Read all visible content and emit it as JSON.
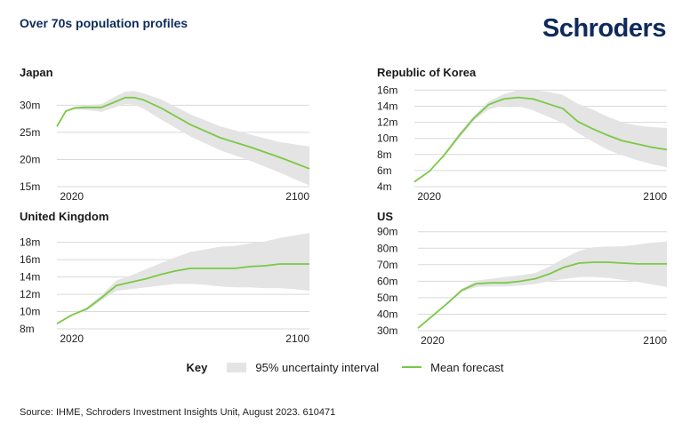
{
  "header": {
    "title": "Over 70s population profiles",
    "logo_text": "Schroders"
  },
  "legend": {
    "key_label": "Key",
    "band_label": "95% uncertainty interval",
    "line_label": "Mean forecast"
  },
  "source": "Source: IHME, Schroders Investment Insights Unit, August 2023. 610471",
  "colors": {
    "mean_line": "#7ac943",
    "uncertainty_band": "#e4e4e4",
    "brand": "#0e2a5c"
  },
  "chart_data": [
    {
      "type": "area",
      "title": "Japan",
      "xlim": [
        2015,
        2100
      ],
      "ylim": [
        15,
        33
      ],
      "x_ticks": [
        2020,
        2100
      ],
      "x_tick_labels": [
        "2020",
        "2100"
      ],
      "y_ticks": [
        15,
        20,
        25,
        30
      ],
      "y_tick_labels": [
        "15m",
        "20m",
        "25m",
        "30m"
      ],
      "grid": true,
      "x": [
        2015,
        2018,
        2021,
        2025,
        2030,
        2035,
        2038,
        2041,
        2044,
        2050,
        2060,
        2070,
        2080,
        2090,
        2100
      ],
      "series": [
        {
          "name": "Mean forecast",
          "values": [
            26.1,
            28.9,
            29.5,
            29.6,
            29.6,
            30.7,
            31.4,
            31.4,
            31.0,
            29.5,
            26.4,
            24.0,
            22.3,
            20.4,
            18.3
          ]
        },
        {
          "name": "95% uncertainty interval",
          "lower": [
            26.1,
            28.9,
            29.2,
            29.1,
            28.8,
            29.7,
            30.2,
            30.1,
            29.4,
            27.4,
            24.2,
            21.7,
            19.8,
            17.6,
            15.2
          ],
          "upper": [
            26.1,
            28.9,
            29.7,
            30.0,
            30.2,
            31.7,
            32.5,
            32.6,
            32.2,
            31.1,
            28.3,
            26.1,
            24.6,
            23.2,
            22.4
          ]
        }
      ]
    },
    {
      "type": "area",
      "title": "Republic of Korea",
      "xlim": [
        2015,
        2100
      ],
      "ylim": [
        4,
        16.6
      ],
      "x_ticks": [
        2020,
        2100
      ],
      "x_tick_labels": [
        "2020",
        "2100"
      ],
      "y_ticks": [
        4,
        6,
        8,
        10,
        12,
        14,
        16
      ],
      "y_tick_labels": [
        "4m",
        "6m",
        "8m",
        "10m",
        "12m",
        "14m",
        "16m"
      ],
      "grid": true,
      "x": [
        2015,
        2020,
        2025,
        2030,
        2035,
        2040,
        2045,
        2050,
        2055,
        2060,
        2065,
        2070,
        2075,
        2080,
        2085,
        2090,
        2095,
        2100
      ],
      "series": [
        {
          "name": "Mean forecast",
          "values": [
            4.6,
            5.9,
            7.9,
            10.3,
            12.5,
            14.2,
            14.9,
            15.1,
            14.9,
            14.3,
            13.7,
            12.1,
            11.2,
            10.4,
            9.7,
            9.3,
            8.9,
            8.6
          ]
        },
        {
          "name": "95% uncertainty interval",
          "lower": [
            4.6,
            5.9,
            7.7,
            10.0,
            12.2,
            13.6,
            14.1,
            14.0,
            13.5,
            12.7,
            11.9,
            10.7,
            9.6,
            8.6,
            7.9,
            7.3,
            6.8,
            6.4
          ],
          "upper": [
            4.6,
            5.9,
            8.1,
            10.6,
            12.8,
            14.6,
            15.5,
            16.0,
            16.0,
            15.8,
            15.4,
            14.3,
            13.6,
            12.7,
            12.0,
            11.6,
            11.4,
            11.3
          ]
        }
      ]
    },
    {
      "type": "area",
      "title": "United Kingdom",
      "xlim": [
        2015,
        2100
      ],
      "ylim": [
        8,
        19.2
      ],
      "x_ticks": [
        2020,
        2100
      ],
      "x_tick_labels": [
        "2020",
        "2100"
      ],
      "y_ticks": [
        8,
        10,
        12,
        14,
        16,
        18
      ],
      "y_tick_labels": [
        "8m",
        "10m",
        "12m",
        "14m",
        "16m",
        "18m"
      ],
      "grid": true,
      "x": [
        2015,
        2020,
        2025,
        2030,
        2035,
        2040,
        2045,
        2050,
        2055,
        2060,
        2065,
        2070,
        2075,
        2080,
        2085,
        2090,
        2095,
        2100
      ],
      "series": [
        {
          "name": "Mean forecast",
          "values": [
            8.6,
            9.6,
            10.3,
            11.6,
            13.0,
            13.4,
            13.8,
            14.3,
            14.7,
            15.0,
            15.0,
            15.0,
            15.0,
            15.2,
            15.3,
            15.5,
            15.5,
            15.5
          ]
        },
        {
          "name": "95% uncertainty interval",
          "lower": [
            8.6,
            9.6,
            10.1,
            11.3,
            12.4,
            12.6,
            12.8,
            13.0,
            13.2,
            13.2,
            13.1,
            12.9,
            12.8,
            12.8,
            12.7,
            12.7,
            12.6,
            12.4
          ],
          "upper": [
            8.6,
            9.6,
            10.5,
            11.9,
            13.6,
            14.2,
            14.9,
            15.6,
            16.3,
            16.9,
            17.2,
            17.5,
            17.6,
            17.9,
            18.1,
            18.5,
            18.8,
            19.1
          ]
        }
      ]
    },
    {
      "type": "area",
      "title": "US",
      "xlim": [
        2015,
        2100
      ],
      "ylim": [
        30,
        92
      ],
      "x_ticks": [
        2020,
        2100
      ],
      "x_tick_labels": [
        "2020",
        "2100"
      ],
      "y_ticks": [
        30,
        40,
        50,
        60,
        70,
        80,
        90
      ],
      "y_tick_labels": [
        "30m",
        "40m",
        "50m",
        "60m",
        "70m",
        "80m",
        "90m"
      ],
      "grid": true,
      "x": [
        2015,
        2020,
        2025,
        2030,
        2035,
        2040,
        2045,
        2050,
        2055,
        2060,
        2065,
        2070,
        2075,
        2080,
        2085,
        2090,
        2095,
        2100
      ],
      "series": [
        {
          "name": "Mean forecast",
          "values": [
            31.5,
            39.0,
            46.5,
            54.5,
            58.5,
            59.0,
            59.0,
            60.0,
            61.5,
            64.5,
            68.5,
            71.0,
            71.5,
            71.5,
            71.0,
            70.5,
            70.5,
            70.5
          ]
        },
        {
          "name": "95% uncertainty interval",
          "lower": [
            31.5,
            39.0,
            45.8,
            53.5,
            56.5,
            56.8,
            56.8,
            57.4,
            58.3,
            60.0,
            61.4,
            62.4,
            62.6,
            62.0,
            60.8,
            59.6,
            58.0,
            56.5
          ],
          "upper": [
            31.5,
            39.0,
            47.2,
            55.5,
            60.4,
            61.5,
            62.6,
            63.6,
            65.0,
            69.0,
            74.0,
            78.4,
            80.6,
            81.0,
            81.2,
            82.2,
            83.4,
            84.0
          ]
        }
      ]
    }
  ]
}
